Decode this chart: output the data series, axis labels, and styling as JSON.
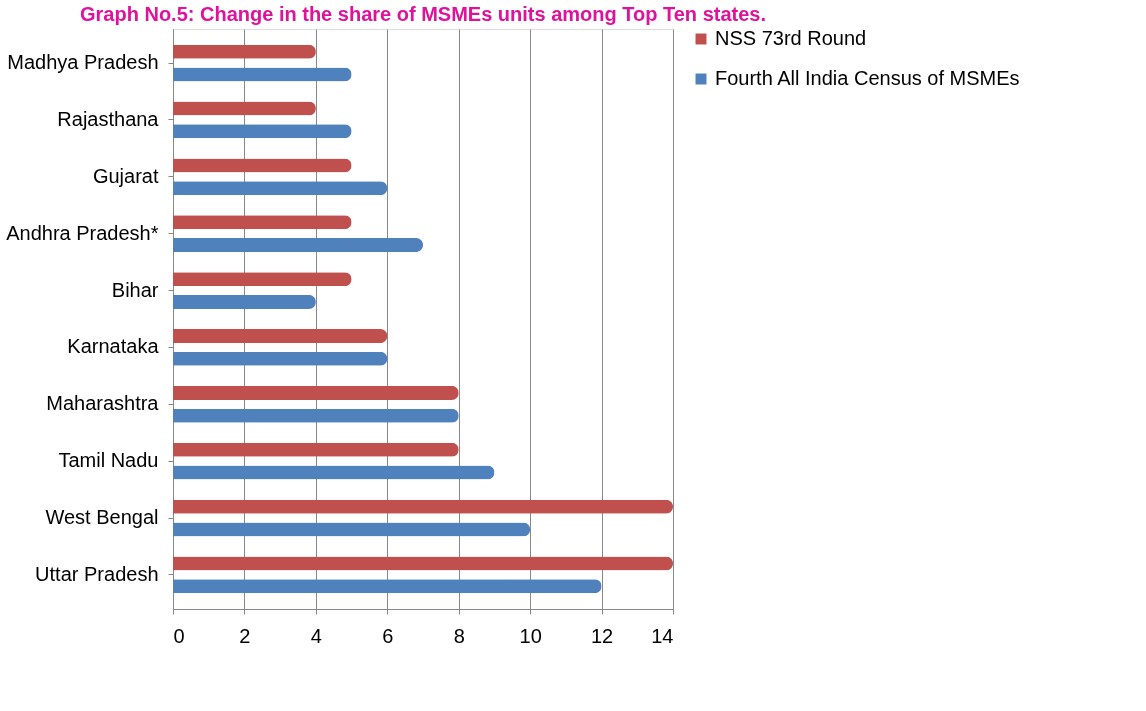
{
  "chart_data": {
    "type": "bar",
    "orientation": "horizontal",
    "title": "Graph No.5: Change in the share of MSMEs units among Top Ten states.",
    "categories": [
      "Madhya Pradesh",
      "Rajasthana",
      "Gujarat",
      "Andhra Pradesh*",
      "Bihar",
      "Karnataka",
      "Maharashtra",
      "Tamil Nadu",
      "West Bengal",
      "Uttar Pradesh"
    ],
    "series": [
      {
        "name": "NSS 73rd Round",
        "color": "#c0504d",
        "values": [
          4,
          4,
          5,
          5,
          5,
          6,
          8,
          8,
          14,
          14
        ]
      },
      {
        "name": "Fourth All India Census of MSMEs",
        "color": "#4f81bd",
        "values": [
          5,
          5,
          6,
          7,
          4,
          6,
          8,
          9,
          10,
          12
        ]
      }
    ],
    "xlim": [
      0,
      14
    ],
    "xticks": [
      0,
      2,
      4,
      6,
      8,
      10,
      12,
      14
    ],
    "grid": "x",
    "legend": "right"
  }
}
